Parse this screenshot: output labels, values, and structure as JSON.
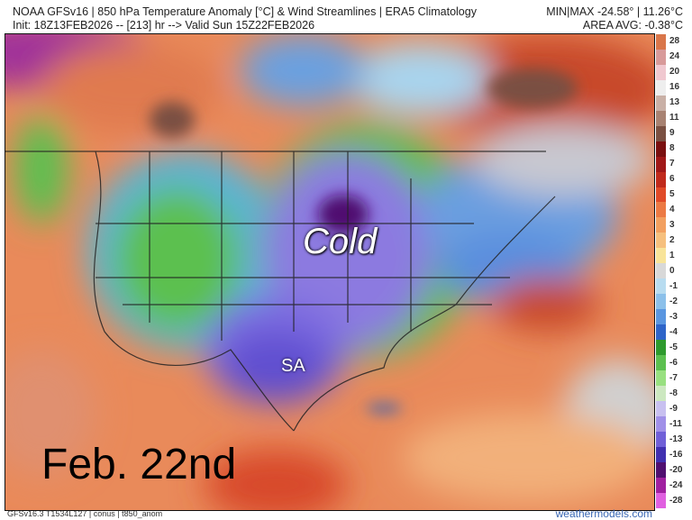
{
  "header": {
    "title": "NOAA GFSv16 | 850 hPa Temperature Anomaly [°C] & Wind Streamlines | ERA5 Climatology",
    "init": "Init: 18Z13FEB2026 -- [213] hr --> Valid Sun 15Z22FEB2026",
    "minmax": "MIN|MAX -24.58° | 11.26°C",
    "area_avg": "AREA AVG: -0.38°C"
  },
  "map": {
    "annotations": {
      "cold": "Cold",
      "sa": "SA",
      "date": "Feb. 22nd"
    }
  },
  "colorbar": {
    "labels": [
      "28",
      "24",
      "20",
      "16",
      "13",
      "11",
      "9",
      "8",
      "7",
      "6",
      "5",
      "4",
      "3",
      "2",
      "1",
      "0",
      "-1",
      "-2",
      "-3",
      "-4",
      "-5",
      "-6",
      "-7",
      "-8",
      "-9",
      "-11",
      "-13",
      "-16",
      "-20",
      "-24",
      "-28"
    ],
    "colors": [
      "#d9764a",
      "#d89a9a",
      "#f0c8d0",
      "#eeeeee",
      "#c9b0a6",
      "#a88272",
      "#7a5042",
      "#7a1010",
      "#a01818",
      "#c02a1c",
      "#e04a28",
      "#ec7a44",
      "#f2a060",
      "#f6c07e",
      "#f8e49a",
      "#d8d8d8",
      "#b8dcf0",
      "#8cc0ea",
      "#5a96e0",
      "#2e64c8",
      "#2e9a2e",
      "#5cc050",
      "#98e080",
      "#cce8c0",
      "#c8c0f0",
      "#a090e8",
      "#7060d8",
      "#4030b0",
      "#501070",
      "#a020a0",
      "#e060e0"
    ]
  },
  "footer": {
    "model": "GFSv16.3 T1534L127 | conus | t850_anom",
    "site": "weathermodels.com"
  }
}
